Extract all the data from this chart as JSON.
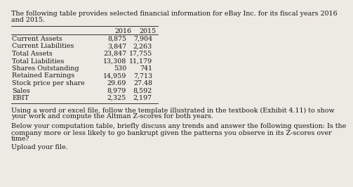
{
  "intro_line1": "The following table provides selected financial information for eBay Inc. for its fiscal years 2016",
  "intro_line2": "and 2015.",
  "col_headers": [
    "2016",
    "2015"
  ],
  "row_labels": [
    "Current Assets",
    "Current Liabilities",
    "Total Assets",
    "Total Liabilities",
    "Shares Outstanding",
    "Retained Earnings",
    "Stock price per share",
    "Sales",
    "EBIT"
  ],
  "col2016": [
    "8,875",
    "3,847",
    "23,847",
    "13,308",
    "530",
    "14,959",
    "29.69",
    "8,979",
    "2,325"
  ],
  "col2015": [
    "7,904",
    "2,263",
    "17,755",
    "11,179",
    "741",
    "7,713",
    "27.48",
    "8,592",
    "2,197"
  ],
  "body_text1_line1": "Using a word or excel file, follow the template illustrated in the textbook (Exhibit 4.11) to show",
  "body_text1_line2": "your work and compute the Altman Z-scores for both years.",
  "body_text2_line1": "Below your computation table, briefly discuss any trends and answer the following question: Is the",
  "body_text2_line2": "company more or less likely to go bankrupt given the patterns you observe in its Z-scores over",
  "body_text2_line3": "time?",
  "body_text3": "Upload your file.",
  "bg_color": "#ede9e3",
  "text_color": "#1a1a1a",
  "font_size": 6.8,
  "line_color": "#333333"
}
